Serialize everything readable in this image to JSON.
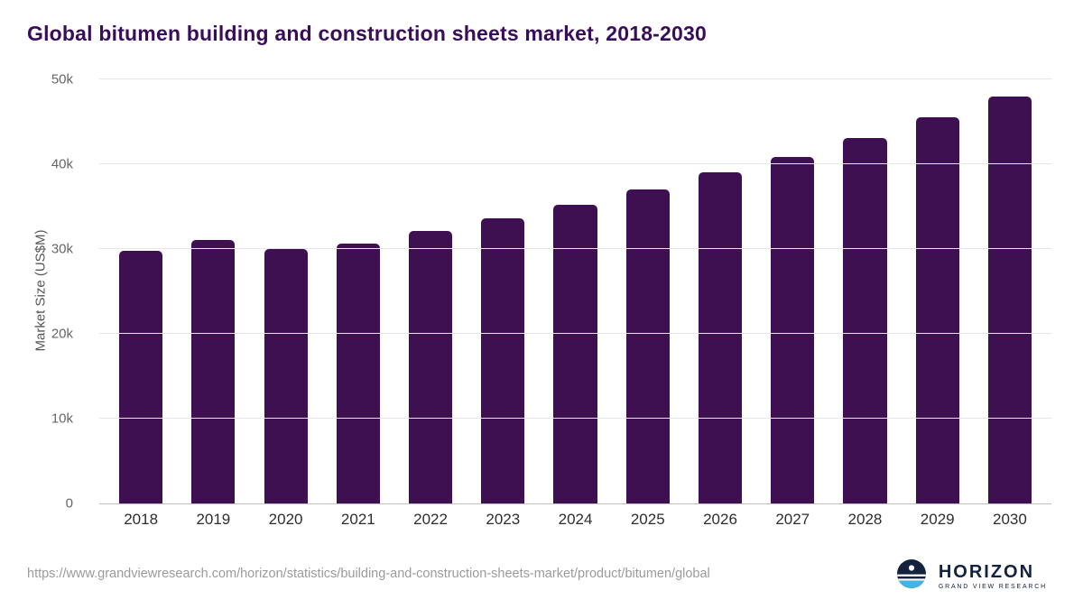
{
  "title": "Global bitumen building and construction sheets market, 2018-2030",
  "chart_data": {
    "type": "bar",
    "title": "Global bitumen building and construction sheets market, 2018-2030",
    "categories": [
      "2018",
      "2019",
      "2020",
      "2021",
      "2022",
      "2023",
      "2024",
      "2025",
      "2026",
      "2027",
      "2028",
      "2029",
      "2030"
    ],
    "values": [
      29800,
      31100,
      30000,
      30600,
      32100,
      33600,
      35200,
      37000,
      39000,
      40900,
      43100,
      45500,
      48000
    ],
    "xlabel": "",
    "ylabel": "Market Size (US$M)",
    "ylim": [
      0,
      50000
    ],
    "yticks": [
      0,
      10000,
      20000,
      30000,
      40000,
      50000
    ],
    "ytick_labels": [
      "0",
      "10k",
      "20k",
      "30k",
      "40k",
      "50k"
    ],
    "bar_color": "#3e1052",
    "grid": true,
    "legend": false
  },
  "footer": {
    "source_url": "https://www.grandviewresearch.com/horizon/statistics/building-and-construction-sheets-market/product/bitumen/global",
    "logo_text": "HORIZON",
    "logo_subtext": "GRAND VIEW RESEARCH"
  },
  "colors": {
    "title": "#3a0d5c",
    "bar": "#3e1052",
    "gridline": "#e6e6e6",
    "axis": "#bfbfbf",
    "logo_navy": "#13233f",
    "logo_blue": "#3fb4e6"
  }
}
